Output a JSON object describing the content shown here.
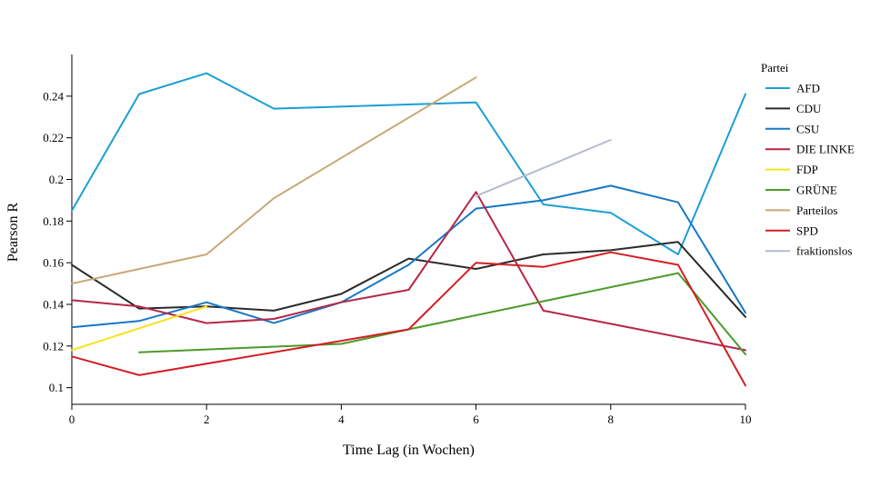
{
  "chart_data": {
    "type": "line",
    "xlabel": "Time Lag (in Wochen)",
    "ylabel": "Pearson R",
    "xlim": [
      0,
      10
    ],
    "ylim": [
      0.092,
      0.26
    ],
    "x_ticks": [
      0,
      2,
      4,
      6,
      8,
      10
    ],
    "y_ticks": [
      0.1,
      0.12,
      0.14,
      0.16,
      0.18,
      0.2,
      0.22,
      0.24
    ],
    "y_tick_labels": [
      "0.1",
      "0.12",
      "0.14",
      "0.16",
      "0.18",
      "0.2",
      "0.22",
      "0.24"
    ],
    "grid": false,
    "legend": {
      "title": "Partei",
      "placement": "right"
    },
    "series": [
      {
        "name": "AFD",
        "color": "#1a9fd4",
        "points": [
          [
            0,
            0.185
          ],
          [
            1,
            0.241
          ],
          [
            2,
            0.251
          ],
          [
            3,
            0.234
          ],
          [
            6,
            0.237
          ],
          [
            7,
            0.188
          ],
          [
            8,
            0.184
          ],
          [
            9,
            0.164
          ],
          [
            10,
            0.241
          ]
        ]
      },
      {
        "name": "CDU",
        "color": "#2b2b2b",
        "points": [
          [
            0,
            0.159
          ],
          [
            1,
            0.138
          ],
          [
            2,
            0.139
          ],
          [
            3,
            0.137
          ],
          [
            4,
            0.145
          ],
          [
            5,
            0.162
          ],
          [
            6,
            0.157
          ],
          [
            7,
            0.164
          ],
          [
            8,
            0.166
          ],
          [
            9,
            0.17
          ],
          [
            10,
            0.134
          ]
        ]
      },
      {
        "name": "CSU",
        "color": "#1778c4",
        "points": [
          [
            0,
            0.129
          ],
          [
            1,
            0.132
          ],
          [
            2,
            0.141
          ],
          [
            3,
            0.131
          ],
          [
            4,
            0.141
          ],
          [
            5,
            0.159
          ],
          [
            6,
            0.186
          ],
          [
            7,
            0.19
          ],
          [
            8,
            0.197
          ],
          [
            9,
            0.189
          ],
          [
            10,
            0.136
          ]
        ]
      },
      {
        "name": "DIE LINKE",
        "color": "#b5264a",
        "points": [
          [
            0,
            0.142
          ],
          [
            1,
            0.139
          ],
          [
            2,
            0.131
          ],
          [
            3,
            0.133
          ],
          [
            4,
            0.141
          ],
          [
            5,
            0.147
          ],
          [
            6,
            0.194
          ],
          [
            7,
            0.137
          ],
          [
            10,
            0.118
          ]
        ]
      },
      {
        "name": "FDP",
        "color": "#f7e31a",
        "points": [
          [
            0,
            0.118
          ],
          [
            2,
            0.139
          ]
        ]
      },
      {
        "name": "GRÜNE",
        "color": "#4c9a2a",
        "points": [
          [
            1,
            0.117
          ],
          [
            4,
            0.121
          ],
          [
            5,
            0.128
          ],
          [
            9,
            0.155
          ],
          [
            10,
            0.116
          ]
        ]
      },
      {
        "name": "Parteilos",
        "color": "#c9a877",
        "points": [
          [
            0,
            0.15
          ],
          [
            2,
            0.164
          ],
          [
            3,
            0.191
          ],
          [
            6,
            0.249
          ]
        ]
      },
      {
        "name": "SPD",
        "color": "#d41d24",
        "points": [
          [
            0,
            0.115
          ],
          [
            1,
            0.106
          ],
          [
            5,
            0.128
          ],
          [
            6,
            0.16
          ],
          [
            7,
            0.158
          ],
          [
            8,
            0.165
          ],
          [
            9,
            0.159
          ],
          [
            10,
            0.101
          ]
        ]
      },
      {
        "name": "fraktionslos",
        "color": "#b4bccb",
        "points": [
          [
            6,
            0.192
          ],
          [
            8,
            0.219
          ]
        ]
      }
    ]
  }
}
